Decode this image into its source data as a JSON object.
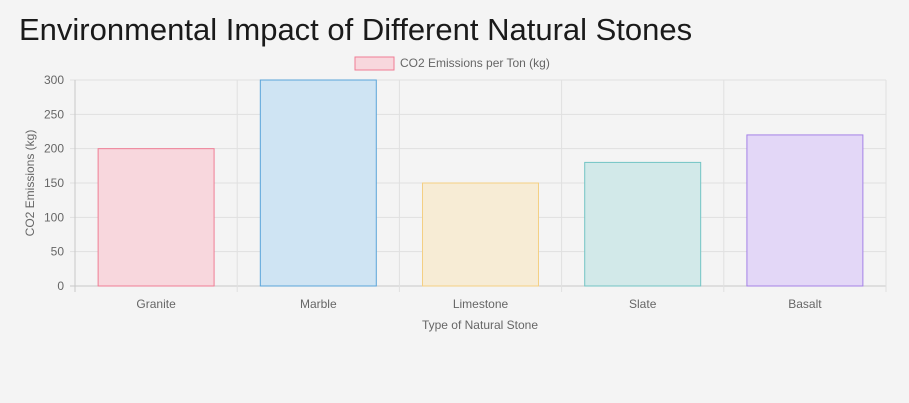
{
  "page": {
    "title": "Environmental Impact of Different Natural Stones"
  },
  "chart_data": {
    "type": "bar",
    "categories": [
      "Granite",
      "Marble",
      "Limestone",
      "Slate",
      "Basalt"
    ],
    "series": [
      {
        "name": "CO2 Emissions per Ton (kg)",
        "values": [
          200,
          300,
          150,
          180,
          220
        ]
      }
    ],
    "bar_fill_colors": [
      "#f8d7dd",
      "#cfe4f3",
      "#f7ecd5",
      "#d2e9e9",
      "#e3d7f7"
    ],
    "bar_border_colors": [
      "#ef7d95",
      "#5aa4d9",
      "#f4cf83",
      "#72c4c4",
      "#a481e6"
    ],
    "legend_swatch_fill": "#f8d7dd",
    "legend_swatch_border": "#ef7d95",
    "legend_position": "top",
    "xlabel": "Type of Natural Stone",
    "ylabel": "CO2 Emissions (kg)",
    "ylim": [
      0,
      300
    ],
    "yticks": [
      0,
      50,
      100,
      150,
      200,
      250,
      300
    ],
    "grid": true
  }
}
